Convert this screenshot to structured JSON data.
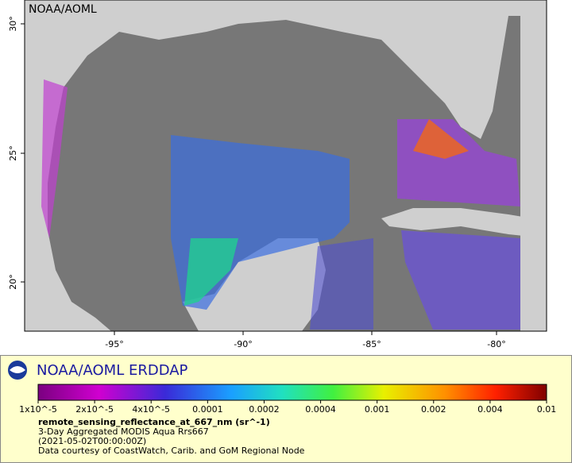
{
  "map": {
    "watermark": "NOAA/AOML",
    "lon_ticks": [
      "-95°",
      "-90°",
      "-85°",
      "-80°"
    ],
    "lat_ticks": [
      "20°",
      "25°",
      "30°"
    ]
  },
  "legend": {
    "title": "NOAA/AOML ERDDAP",
    "colorbar_ticks": [
      "1x10^-5",
      "2x10^-5",
      "4x10^-5",
      "0.0001",
      "0.0002",
      "0.0004",
      "0.001",
      "0.002",
      "0.004",
      "0.01"
    ],
    "variable": "remote_sensing_reflectance_at_667_nm (sr^-1)",
    "lines": [
      "3-Day Aggregated MODIS Aqua Rrs667",
      "(2021-05-02T00:00:00Z)",
      "Data courtesy of CoastWatch, Carib. and GoM Regional Node"
    ]
  }
}
